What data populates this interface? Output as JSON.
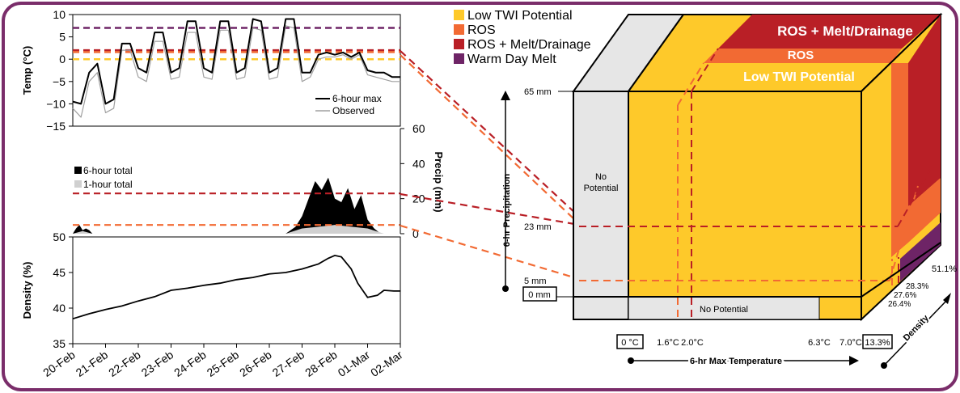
{
  "colors": {
    "frame": "#7a2d6a",
    "low_twi": "#fec92a",
    "ros": "#f26a33",
    "ros_melt": "#b91f26",
    "warm_day": "#6e2466",
    "no_potential": "#e6e6e6",
    "observed": "#a0a0a0",
    "one_hour": "#d0d0d0"
  },
  "legend": [
    {
      "label": "Low TWI Potential",
      "color_key": "low_twi"
    },
    {
      "label": "ROS",
      "color_key": "ros"
    },
    {
      "label": "ROS + Melt/Drainage",
      "color_key": "ros_melt"
    },
    {
      "label": "Warm Day Melt",
      "color_key": "warm_day"
    }
  ],
  "chart_data": [
    {
      "type": "line",
      "ylabel": "Temp (°C)",
      "ylim": [
        -15,
        10
      ],
      "yticks": [
        "10",
        "5",
        "0",
        "−5",
        "−10",
        "−15"
      ],
      "series": [
        {
          "name": "6-hour max",
          "x": [
            0,
            0.25,
            0.5,
            0.75,
            1,
            1.25,
            1.5,
            1.75,
            2,
            2.25,
            2.5,
            2.75,
            3,
            3.25,
            3.5,
            3.75,
            4,
            4.25,
            4.5,
            4.75,
            5,
            5.25,
            5.5,
            5.75,
            6,
            6.25,
            6.5,
            6.75,
            7,
            7.25,
            7.5,
            7.75,
            8,
            8.25,
            8.5,
            8.75,
            9,
            9.25,
            9.5,
            9.75,
            10
          ],
          "y": [
            -9.5,
            -10,
            -3,
            -1,
            -10,
            -9,
            3.5,
            3.5,
            -2,
            -3,
            6,
            6,
            -3,
            -2,
            8.5,
            8.5,
            -2,
            -3,
            8.5,
            8.5,
            -3,
            -2,
            9,
            8.5,
            -3,
            -2,
            9,
            9,
            -3,
            -3,
            1,
            1.5,
            1,
            1.5,
            0.5,
            1.5,
            -2.5,
            -3,
            -3,
            -4,
            -4
          ]
        },
        {
          "name": "Observed",
          "x": [
            0,
            0.25,
            0.5,
            0.75,
            1,
            1.25,
            1.5,
            1.75,
            2,
            2.25,
            2.5,
            2.75,
            3,
            3.25,
            3.5,
            3.75,
            4,
            4.25,
            4.5,
            4.75,
            5,
            5.25,
            5.5,
            5.75,
            6,
            6.25,
            6.5,
            6.75,
            7,
            7.25,
            7.5,
            7.75,
            8,
            8.25,
            8.5,
            8.75,
            9,
            9.25,
            9.5,
            9.75,
            10
          ],
          "y": [
            -11,
            -13,
            -5,
            -3,
            -12,
            -11,
            2,
            2,
            -4,
            -5,
            4,
            4,
            -4.5,
            -4,
            6,
            6,
            -4,
            -4.5,
            6.5,
            6.5,
            -4.5,
            -4,
            7,
            6.5,
            -4.5,
            -4,
            7.5,
            7,
            -5,
            -4,
            0,
            0.5,
            0.5,
            1,
            0,
            1,
            -3.5,
            -4,
            -4.5,
            -5,
            -5
          ]
        }
      ],
      "thresholds": [
        {
          "value": 7.0,
          "color_key": "warm_day"
        },
        {
          "value": 2.0,
          "color_key": "ros_melt"
        },
        {
          "value": 1.6,
          "color_key": "ros"
        },
        {
          "value": 0.0,
          "color_key": "low_twi"
        }
      ]
    },
    {
      "type": "area",
      "ylabel": "Precip (mm)",
      "ylim": [
        0,
        60
      ],
      "yticks": [
        "60",
        "40",
        "20",
        "0"
      ],
      "series": [
        {
          "name": "6-hour total",
          "x": [
            0,
            0.1,
            0.2,
            0.3,
            0.4,
            0.5,
            0.6,
            1.5,
            6.5,
            6.8,
            7.0,
            7.2,
            7.4,
            7.6,
            7.8,
            8.0,
            8.2,
            8.4,
            8.6,
            8.8,
            9.0,
            9.2,
            9.4,
            9.6
          ],
          "y": [
            0,
            3,
            5,
            2,
            3,
            2,
            0,
            0,
            0,
            4,
            10,
            20,
            30,
            25,
            32,
            20,
            18,
            26,
            14,
            22,
            8,
            3,
            0,
            0
          ]
        },
        {
          "name": "1-hour total",
          "x": [
            0,
            0.3,
            0.6,
            6.5,
            7.0,
            7.5,
            8.0,
            8.5,
            9.0,
            9.5
          ],
          "y": [
            0,
            1.5,
            0,
            0,
            3,
            4,
            5,
            4,
            3,
            0
          ]
        }
      ],
      "thresholds": [
        {
          "value": 23,
          "color_key": "ros_melt"
        },
        {
          "value": 5,
          "color_key": "ros"
        }
      ]
    },
    {
      "type": "line",
      "ylabel": "Density (%)",
      "ylim": [
        35,
        50
      ],
      "yticks": [
        "50",
        "45",
        "40",
        "35"
      ],
      "xticks": [
        "20-Feb",
        "21-Feb",
        "22-Feb",
        "23-Feb",
        "24-Feb",
        "25-Feb",
        "26-Feb",
        "27-Feb",
        "28-Feb",
        "01-Mar",
        "02-Mar"
      ],
      "series": [
        {
          "name": "Density",
          "x": [
            0,
            0.5,
            1,
            1.5,
            2,
            2.5,
            3,
            3.5,
            4,
            4.5,
            5,
            5.5,
            6,
            6.5,
            7,
            7.5,
            7.8,
            8,
            8.2,
            8.5,
            8.7,
            9,
            9.3,
            9.5,
            9.8,
            10
          ],
          "y": [
            38.5,
            39.2,
            39.8,
            40.3,
            41,
            41.6,
            42.5,
            42.8,
            43.2,
            43.5,
            44,
            44.3,
            44.8,
            45,
            45.5,
            46.2,
            47,
            47.4,
            47.2,
            45.5,
            43.5,
            41.5,
            41.8,
            42.5,
            42.4,
            42.4
          ]
        }
      ]
    }
  ],
  "cube": {
    "left_face_label": "No\nPotential",
    "bottom_label": "No Potential",
    "region_labels": [
      "ROS + Melt/Drainage",
      "ROS",
      "Low TWI Potential"
    ],
    "y_axis_title": "6-hr Precipitation",
    "y_ticks": [
      "65  mm",
      "23  mm",
      "5  mm"
    ],
    "y_zero": "0  mm",
    "x_axis_title": "6-hr Max Temperature",
    "x_zero": "0 °C",
    "x_ticks": [
      "1.6°C",
      "2.0°C",
      "6.3°C",
      "7.0°C"
    ],
    "z_axis_title": "Density",
    "z_first": "13.3%",
    "z_ticks": [
      "26.4%",
      "27.6%",
      "28.3%",
      "51.1%"
    ]
  }
}
